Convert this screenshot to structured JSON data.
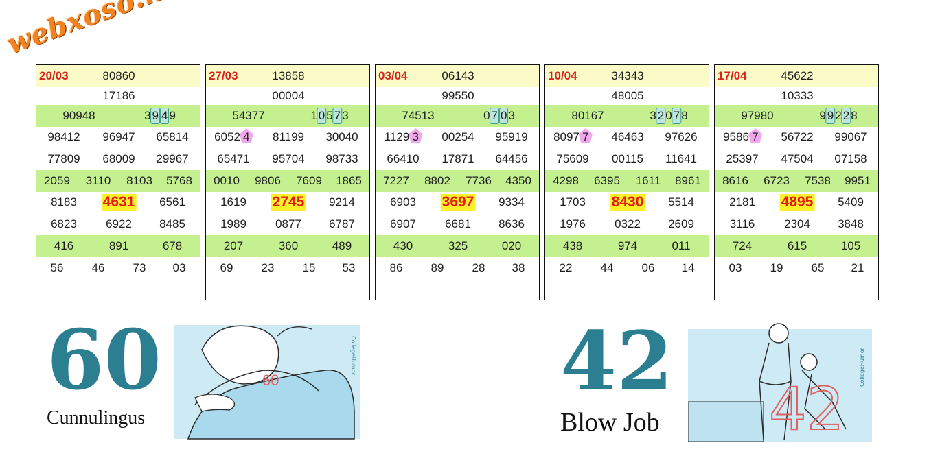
{
  "watermark": "webxoso.net",
  "cards": [
    {
      "date": "20/03",
      "top": "80860",
      "second": "17186",
      "g2a": "90948",
      "g2b_pre": "3",
      "g2b_h1": "9",
      "g2b_mid": "",
      "g2b_h2": "4",
      "g2b_post": "9",
      "r4": [
        "98412",
        "96947",
        "65814"
      ],
      "r4_first_pre": "",
      "r4_first_mark": "",
      "r5": [
        "77809",
        "68009",
        "29967"
      ],
      "r6": [
        "2059",
        "3110",
        "8103",
        "5768"
      ],
      "r7": [
        "8183",
        "4631",
        "6561"
      ],
      "r8": [
        "6823",
        "6922",
        "8485"
      ],
      "r9": [
        "416",
        "891",
        "678"
      ],
      "r10": [
        "56",
        "46",
        "73",
        "03"
      ]
    },
    {
      "date": "27/03",
      "top": "13858",
      "second": "00004",
      "g2a": "54377",
      "g2b_pre": "1",
      "g2b_h1": "0",
      "g2b_mid": "5",
      "g2b_h2": "7",
      "g2b_post": "3",
      "r4": [
        "60524",
        "81199",
        "30040"
      ],
      "r4_first_pre": "6052",
      "r4_first_mark": "4",
      "r5": [
        "65471",
        "95704",
        "98733"
      ],
      "r6": [
        "0010",
        "9806",
        "7609",
        "1865"
      ],
      "r7": [
        "1619",
        "2745",
        "9214"
      ],
      "r8": [
        "1989",
        "0877",
        "6787"
      ],
      "r9": [
        "207",
        "360",
        "489"
      ],
      "r10": [
        "69",
        "23",
        "15",
        "53"
      ]
    },
    {
      "date": "03/04",
      "top": "06143",
      "second": "99550",
      "g2a": "74513",
      "g2b_pre": "0",
      "g2b_h1": "7",
      "g2b_mid": "",
      "g2b_h2": "0",
      "g2b_post": "3",
      "r4": [
        "11293",
        "00254",
        "95919"
      ],
      "r4_first_pre": "1129",
      "r4_first_mark": "3",
      "r5": [
        "66410",
        "17871",
        "64456"
      ],
      "r6": [
        "7227",
        "8802",
        "7736",
        "4350"
      ],
      "r7": [
        "6903",
        "3697",
        "9334"
      ],
      "r8": [
        "6907",
        "6681",
        "8636"
      ],
      "r9": [
        "430",
        "325",
        "020"
      ],
      "r10": [
        "86",
        "89",
        "28",
        "38"
      ]
    },
    {
      "date": "10/04",
      "top": "34343",
      "second": "48005",
      "g2a": "80167",
      "g2b_pre": "3",
      "g2b_h1": "2",
      "g2b_mid": "0",
      "g2b_h2": "7",
      "g2b_post": "8",
      "r4": [
        "80977",
        "46463",
        "97626"
      ],
      "r4_first_pre": "8097",
      "r4_first_mark": "7",
      "r5": [
        "75609",
        "00115",
        "11641"
      ],
      "r6": [
        "4298",
        "6395",
        "1611",
        "8961"
      ],
      "r7": [
        "1703",
        "8430",
        "5514"
      ],
      "r8": [
        "1976",
        "0322",
        "2609"
      ],
      "r9": [
        "438",
        "974",
        "011"
      ],
      "r10": [
        "22",
        "44",
        "06",
        "14"
      ]
    },
    {
      "date": "17/04",
      "top": "45622",
      "second": "10333",
      "g2a": "97980",
      "g2b_pre": "9",
      "g2b_h1": "9",
      "g2b_mid": "2",
      "g2b_h2": "2",
      "g2b_post": "8",
      "r4": [
        "95867",
        "56722",
        "99067"
      ],
      "r4_first_pre": "9586",
      "r4_first_mark": "7",
      "r5": [
        "25397",
        "47504",
        "07158"
      ],
      "r6": [
        "8616",
        "6723",
        "7538",
        "9951"
      ],
      "r7": [
        "2181",
        "4895",
        "5409"
      ],
      "r8": [
        "3116",
        "2304",
        "3848"
      ],
      "r9": [
        "724",
        "615",
        "105"
      ],
      "r10": [
        "03",
        "19",
        "65",
        "21"
      ]
    }
  ],
  "left_illustration": {
    "number": "60",
    "caption": "Cunnulingus",
    "inline_number": "60",
    "brand": "CollegeHumor"
  },
  "right_illustration": {
    "number": "42",
    "caption": "Blow Job",
    "inline_number": "42",
    "brand": "CollegeHumor"
  },
  "colors": {
    "date": "#d8251c",
    "special_bg": "#fdf02b",
    "special_text": "#e31b13",
    "green_row": "#c5f090",
    "yellow_row": "#fbfbc7",
    "teal": "#2b7f90"
  }
}
